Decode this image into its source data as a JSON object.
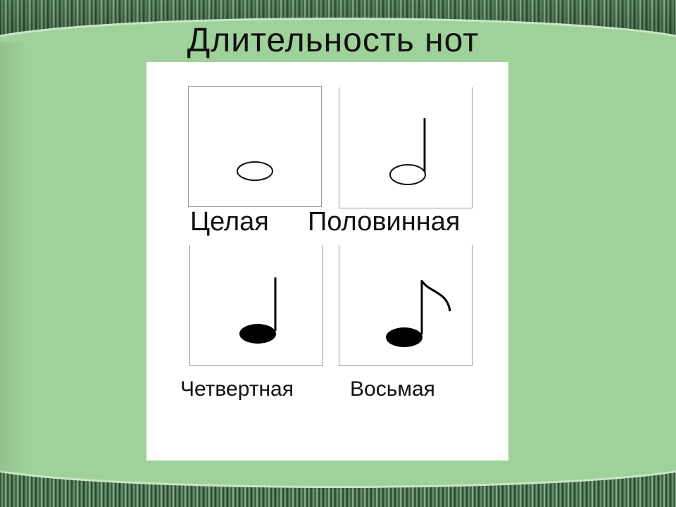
{
  "slide": {
    "title": "Длительность нот",
    "notes": [
      {
        "label": "Целая",
        "icon": "whole-note-icon"
      },
      {
        "label": "Половинная",
        "icon": "half-note-icon"
      },
      {
        "label": "Четвертная",
        "icon": "quarter-note-icon"
      },
      {
        "label": "Восьмая",
        "icon": "eighth-note-icon"
      }
    ]
  },
  "colors": {
    "background": "#9fd19a",
    "panel": "#ffffff",
    "ink": "#111111"
  }
}
